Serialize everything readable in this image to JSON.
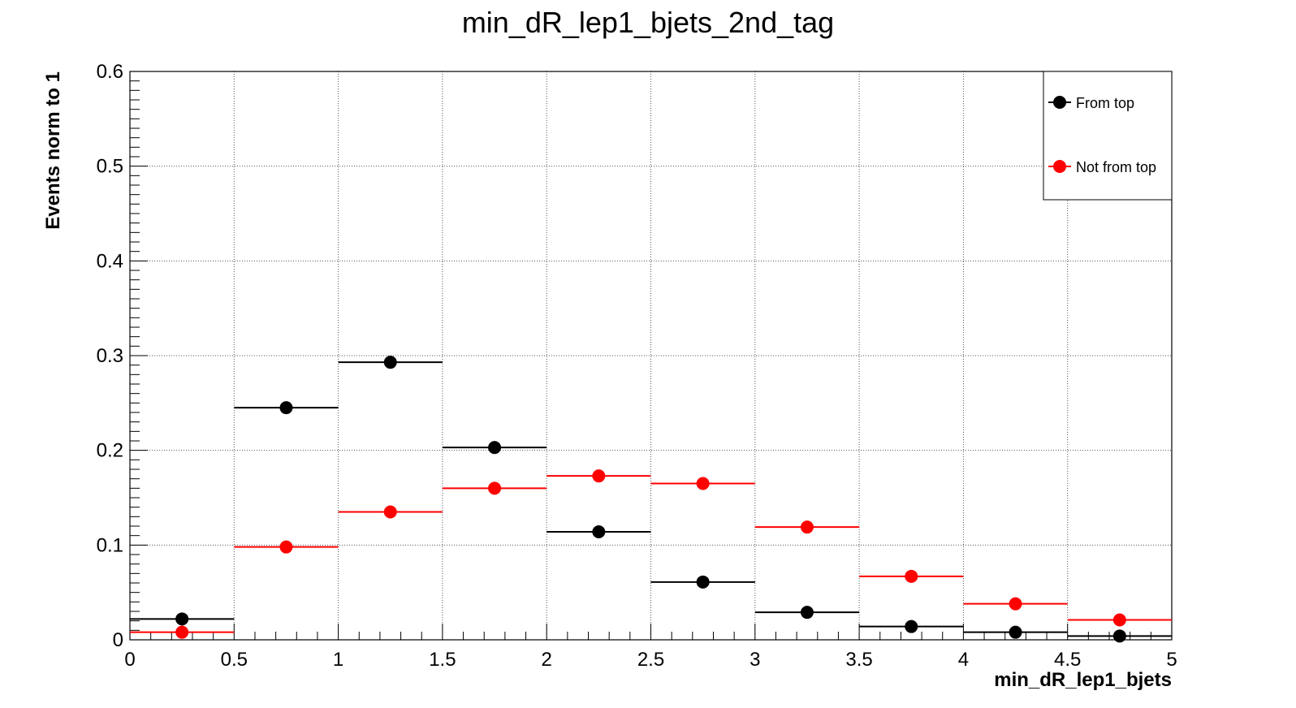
{
  "chart_data": {
    "type": "scatter",
    "title": "min_dR_lep1_bjets_2nd_tag",
    "xlabel": "min_dR_lep1_bjets",
    "ylabel": "Events norm to 1",
    "xlim": [
      0,
      5
    ],
    "ylim": [
      0,
      0.6
    ],
    "grid": true,
    "legend_position": "top-right",
    "x_ticks": [
      "0",
      "0.5",
      "1",
      "1.5",
      "2",
      "2.5",
      "3",
      "3.5",
      "4",
      "4.5",
      "5"
    ],
    "y_ticks": [
      "0",
      "0.1",
      "0.2",
      "0.3",
      "0.4",
      "0.5",
      "0.6"
    ],
    "bin_edges": [
      0,
      0.5,
      1,
      1.5,
      2,
      2.5,
      3,
      3.5,
      4,
      4.5,
      5
    ],
    "series": [
      {
        "name": "From top",
        "color": "#000000",
        "values": [
          0.022,
          0.245,
          0.293,
          0.203,
          0.114,
          0.061,
          0.029,
          0.014,
          0.008,
          0.004
        ]
      },
      {
        "name": "Not from top",
        "color": "#ff0000",
        "values": [
          0.008,
          0.098,
          0.135,
          0.16,
          0.173,
          0.165,
          0.119,
          0.067,
          0.038,
          0.021
        ]
      }
    ]
  }
}
